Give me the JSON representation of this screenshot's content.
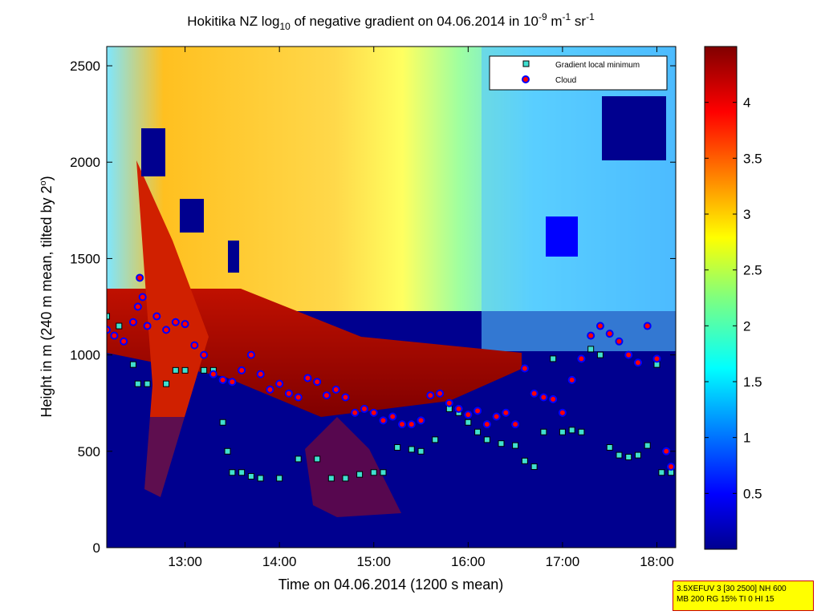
{
  "chart_data": {
    "type": "heatmap",
    "title": {
      "prefix": "Hokitika NZ log",
      "prefix_sub": "10",
      "middle": " of negative gradient on 04.06.2014 in 10",
      "unit1_sup": "-9",
      "unit2": " m",
      "unit2_sup": "-1",
      "unit3": " sr",
      "unit3_sup": "-1"
    },
    "xlabel": "Time on 04.06.2014 (1200 s mean)",
    "ylabel": {
      "main": "Height in m (240 m mean, tilted by 2",
      "sup": "o",
      "end": ")"
    },
    "xlim": [
      12.17,
      18.2
    ],
    "ylim": [
      0,
      2600
    ],
    "x_ticks": [
      "13:00",
      "14:00",
      "15:00",
      "16:00",
      "17:00",
      "18:00"
    ],
    "x_tick_values": [
      13,
      14,
      15,
      16,
      17,
      18
    ],
    "y_ticks": [
      "0",
      "500",
      "1000",
      "1500",
      "2000",
      "2500"
    ],
    "y_tick_values": [
      0,
      500,
      1000,
      1500,
      2000,
      2500
    ],
    "colorbar": {
      "min": 0,
      "max": 4.5,
      "ticks": [
        "0.5",
        "1",
        "1.5",
        "2",
        "2.5",
        "3",
        "3.5",
        "4"
      ],
      "tick_values": [
        0.5,
        1,
        1.5,
        2,
        2.5,
        3,
        3.5,
        4
      ]
    },
    "colormap": "jet",
    "legend": {
      "position": "top-right",
      "entries": [
        "Gradient local minimum",
        "Cloud"
      ]
    },
    "series": [
      {
        "name": "Gradient local minimum",
        "marker": "square",
        "color": "#40e0d0",
        "x": [
          12.17,
          12.3,
          12.45,
          12.5,
          12.6,
          12.8,
          12.9,
          13.0,
          13.2,
          13.3,
          13.4,
          13.45,
          13.5,
          13.6,
          13.7,
          13.8,
          14.0,
          14.2,
          14.4,
          14.55,
          14.7,
          14.85,
          15.0,
          15.1,
          15.25,
          15.4,
          15.5,
          15.65,
          15.8,
          15.9,
          16.0,
          16.1,
          16.2,
          16.35,
          16.5,
          16.6,
          16.7,
          16.8,
          16.9,
          17.0,
          17.1,
          17.2,
          17.3,
          17.4,
          17.5,
          17.6,
          17.7,
          17.8,
          17.9,
          18.0,
          18.05,
          18.15
        ],
        "y": [
          1200,
          1150,
          950,
          850,
          850,
          850,
          920,
          920,
          920,
          920,
          650,
          500,
          390,
          390,
          370,
          360,
          360,
          460,
          460,
          360,
          360,
          380,
          390,
          390,
          520,
          510,
          500,
          560,
          720,
          700,
          650,
          600,
          560,
          540,
          530,
          450,
          420,
          600,
          980,
          600,
          610,
          600,
          1030,
          1000,
          520,
          480,
          470,
          480,
          530,
          950,
          390,
          390
        ]
      },
      {
        "name": "Cloud",
        "marker": "circle",
        "color": "#ff0000",
        "edge": "#0000ff",
        "x": [
          12.17,
          12.25,
          12.35,
          12.45,
          12.5,
          12.52,
          12.55,
          12.6,
          12.7,
          12.8,
          12.9,
          13.0,
          13.1,
          13.2,
          13.3,
          13.4,
          13.5,
          13.6,
          13.7,
          13.8,
          13.9,
          14.0,
          14.1,
          14.2,
          14.3,
          14.4,
          14.5,
          14.6,
          14.7,
          14.8,
          14.9,
          15.0,
          15.1,
          15.2,
          15.3,
          15.4,
          15.5,
          15.6,
          15.7,
          15.8,
          15.9,
          16.0,
          16.1,
          16.2,
          16.3,
          16.4,
          16.5,
          16.6,
          16.7,
          16.8,
          16.9,
          17.0,
          17.1,
          17.2,
          17.3,
          17.4,
          17.5,
          17.6,
          17.7,
          17.8,
          17.9,
          18.0,
          18.1,
          18.15
        ],
        "y": [
          1130,
          1100,
          1070,
          1170,
          1250,
          1400,
          1300,
          1150,
          1200,
          1130,
          1170,
          1160,
          1050,
          1000,
          900,
          870,
          860,
          920,
          1000,
          900,
          820,
          850,
          800,
          780,
          880,
          860,
          790,
          820,
          780,
          700,
          720,
          700,
          660,
          680,
          640,
          640,
          660,
          790,
          800,
          750,
          720,
          690,
          710,
          640,
          680,
          700,
          640,
          930,
          800,
          780,
          770,
          700,
          870,
          980,
          1100,
          1150,
          1110,
          1070,
          1000,
          960,
          1150,
          980,
          500,
          420
        ]
      }
    ]
  },
  "info_box": {
    "line1": "3.5XEFUV 3 [30 2500] NH 600",
    "line2": "MB 200 RG 15% TI 0 HI 15"
  }
}
